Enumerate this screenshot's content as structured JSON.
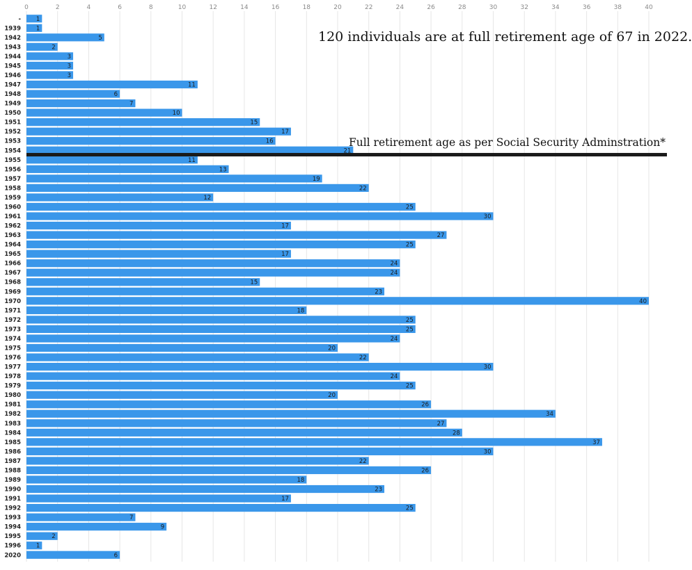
{
  "chart_data": {
    "type": "bar",
    "orientation": "horizontal",
    "categories": [
      "-",
      "1939",
      "1942",
      "1943",
      "1944",
      "1945",
      "1946",
      "1947",
      "1948",
      "1949",
      "1950",
      "1951",
      "1952",
      "1953",
      "1954",
      "1955",
      "1956",
      "1957",
      "1958",
      "1959",
      "1960",
      "1961",
      "1962",
      "1963",
      "1964",
      "1965",
      "1966",
      "1967",
      "1968",
      "1969",
      "1970",
      "1971",
      "1972",
      "1973",
      "1974",
      "1975",
      "1976",
      "1977",
      "1978",
      "1979",
      "1980",
      "1981",
      "1982",
      "1983",
      "1984",
      "1985",
      "1986",
      "1987",
      "1988",
      "1989",
      "1990",
      "1991",
      "1992",
      "1993",
      "1994",
      "1995",
      "1996",
      "2020"
    ],
    "values": [
      1,
      1,
      5,
      2,
      3,
      3,
      3,
      11,
      6,
      7,
      10,
      15,
      17,
      16,
      21,
      11,
      13,
      19,
      22,
      12,
      25,
      30,
      17,
      27,
      25,
      17,
      24,
      24,
      15,
      23,
      40,
      18,
      25,
      25,
      24,
      20,
      22,
      30,
      24,
      25,
      20,
      26,
      34,
      27,
      28,
      37,
      30,
      22,
      26,
      18,
      23,
      17,
      25,
      7,
      9,
      2,
      1,
      6
    ],
    "xlim": [
      0,
      40
    ],
    "x_ticks": [
      0,
      2,
      4,
      6,
      8,
      10,
      12,
      14,
      16,
      18,
      20,
      22,
      24,
      26,
      28,
      30,
      32,
      34,
      36,
      38,
      40
    ],
    "x_axis_position": "top",
    "grid": true,
    "bar_color": "#3a97ea",
    "data_labels": true,
    "reference_line": {
      "between": [
        "1954",
        "1955"
      ],
      "color": "#1a1a1a"
    },
    "annotations": [
      "120 individuals are at full retirement age of 67 in 2022.",
      "Full retirement age as per Social Security Adminstration*"
    ]
  }
}
